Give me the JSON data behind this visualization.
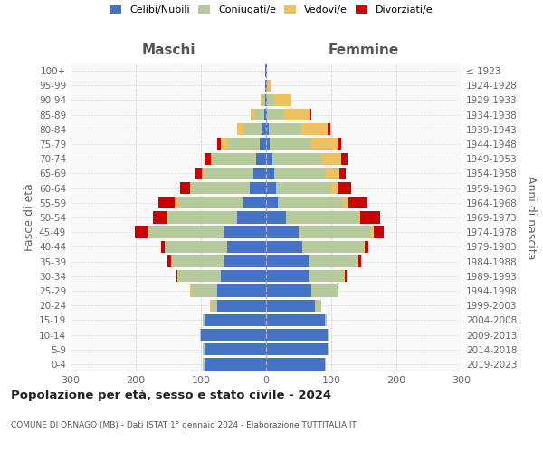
{
  "age_groups": [
    "0-4",
    "5-9",
    "10-14",
    "15-19",
    "20-24",
    "25-29",
    "30-34",
    "35-39",
    "40-44",
    "45-49",
    "50-54",
    "55-59",
    "60-64",
    "65-69",
    "70-74",
    "75-79",
    "80-84",
    "85-89",
    "90-94",
    "95-99",
    "100+"
  ],
  "birth_years": [
    "2019-2023",
    "2014-2018",
    "2009-2013",
    "2004-2008",
    "1999-2003",
    "1994-1998",
    "1989-1993",
    "1984-1988",
    "1979-1983",
    "1974-1978",
    "1969-1973",
    "1964-1968",
    "1959-1963",
    "1954-1958",
    "1949-1953",
    "1944-1948",
    "1939-1943",
    "1934-1938",
    "1929-1933",
    "1924-1928",
    "≤ 1923"
  ],
  "maschi": {
    "celibi": [
      95,
      95,
      100,
      95,
      75,
      75,
      70,
      65,
      60,
      65,
      45,
      35,
      25,
      20,
      15,
      10,
      5,
      3,
      2,
      1,
      1
    ],
    "coniugati": [
      2,
      2,
      2,
      2,
      10,
      40,
      65,
      80,
      95,
      115,
      105,
      100,
      90,
      75,
      65,
      50,
      30,
      15,
      5,
      1,
      0
    ],
    "vedovi": [
      0,
      0,
      0,
      0,
      1,
      1,
      1,
      1,
      1,
      2,
      3,
      5,
      2,
      3,
      5,
      10,
      10,
      5,
      2,
      0,
      0
    ],
    "divorziati": [
      0,
      0,
      0,
      0,
      0,
      1,
      2,
      5,
      5,
      20,
      20,
      25,
      15,
      10,
      10,
      5,
      0,
      0,
      0,
      0,
      0
    ]
  },
  "femmine": {
    "nubili": [
      90,
      95,
      95,
      90,
      75,
      70,
      65,
      65,
      55,
      50,
      30,
      18,
      15,
      12,
      10,
      5,
      4,
      2,
      2,
      1,
      1
    ],
    "coniugate": [
      2,
      2,
      2,
      3,
      10,
      40,
      55,
      75,
      95,
      110,
      110,
      100,
      85,
      80,
      75,
      65,
      50,
      25,
      10,
      2,
      0
    ],
    "vedove": [
      0,
      0,
      0,
      0,
      0,
      0,
      1,
      1,
      2,
      5,
      5,
      8,
      10,
      20,
      30,
      40,
      40,
      40,
      25,
      5,
      1
    ],
    "divorziate": [
      0,
      0,
      0,
      0,
      0,
      1,
      2,
      5,
      5,
      15,
      30,
      30,
      20,
      10,
      10,
      5,
      5,
      2,
      0,
      0,
      0
    ]
  },
  "colors": {
    "celibi_nubili": "#4472c4",
    "coniugati": "#b5c99a",
    "vedovi": "#f0c060",
    "divorziati": "#cc0000"
  },
  "xlim": 300,
  "title": "Popolazione per età, sesso e stato civile - 2024",
  "subtitle": "COMUNE DI ORNAGO (MB) - Dati ISTAT 1° gennaio 2024 - Elaborazione TUTTITALIA.IT",
  "ylabel_left": "Fasce di età",
  "ylabel_right": "Anni di nascita",
  "xlabel_left": "Maschi",
  "xlabel_right": "Femmine",
  "bg_color": "#ffffff",
  "plot_bg_color": "#f8f8f8",
  "grid_color": "#dddddd",
  "legend_labels": [
    "Celibi/Nubili",
    "Coniugati/e",
    "Vedovi/e",
    "Divorziati/e"
  ]
}
